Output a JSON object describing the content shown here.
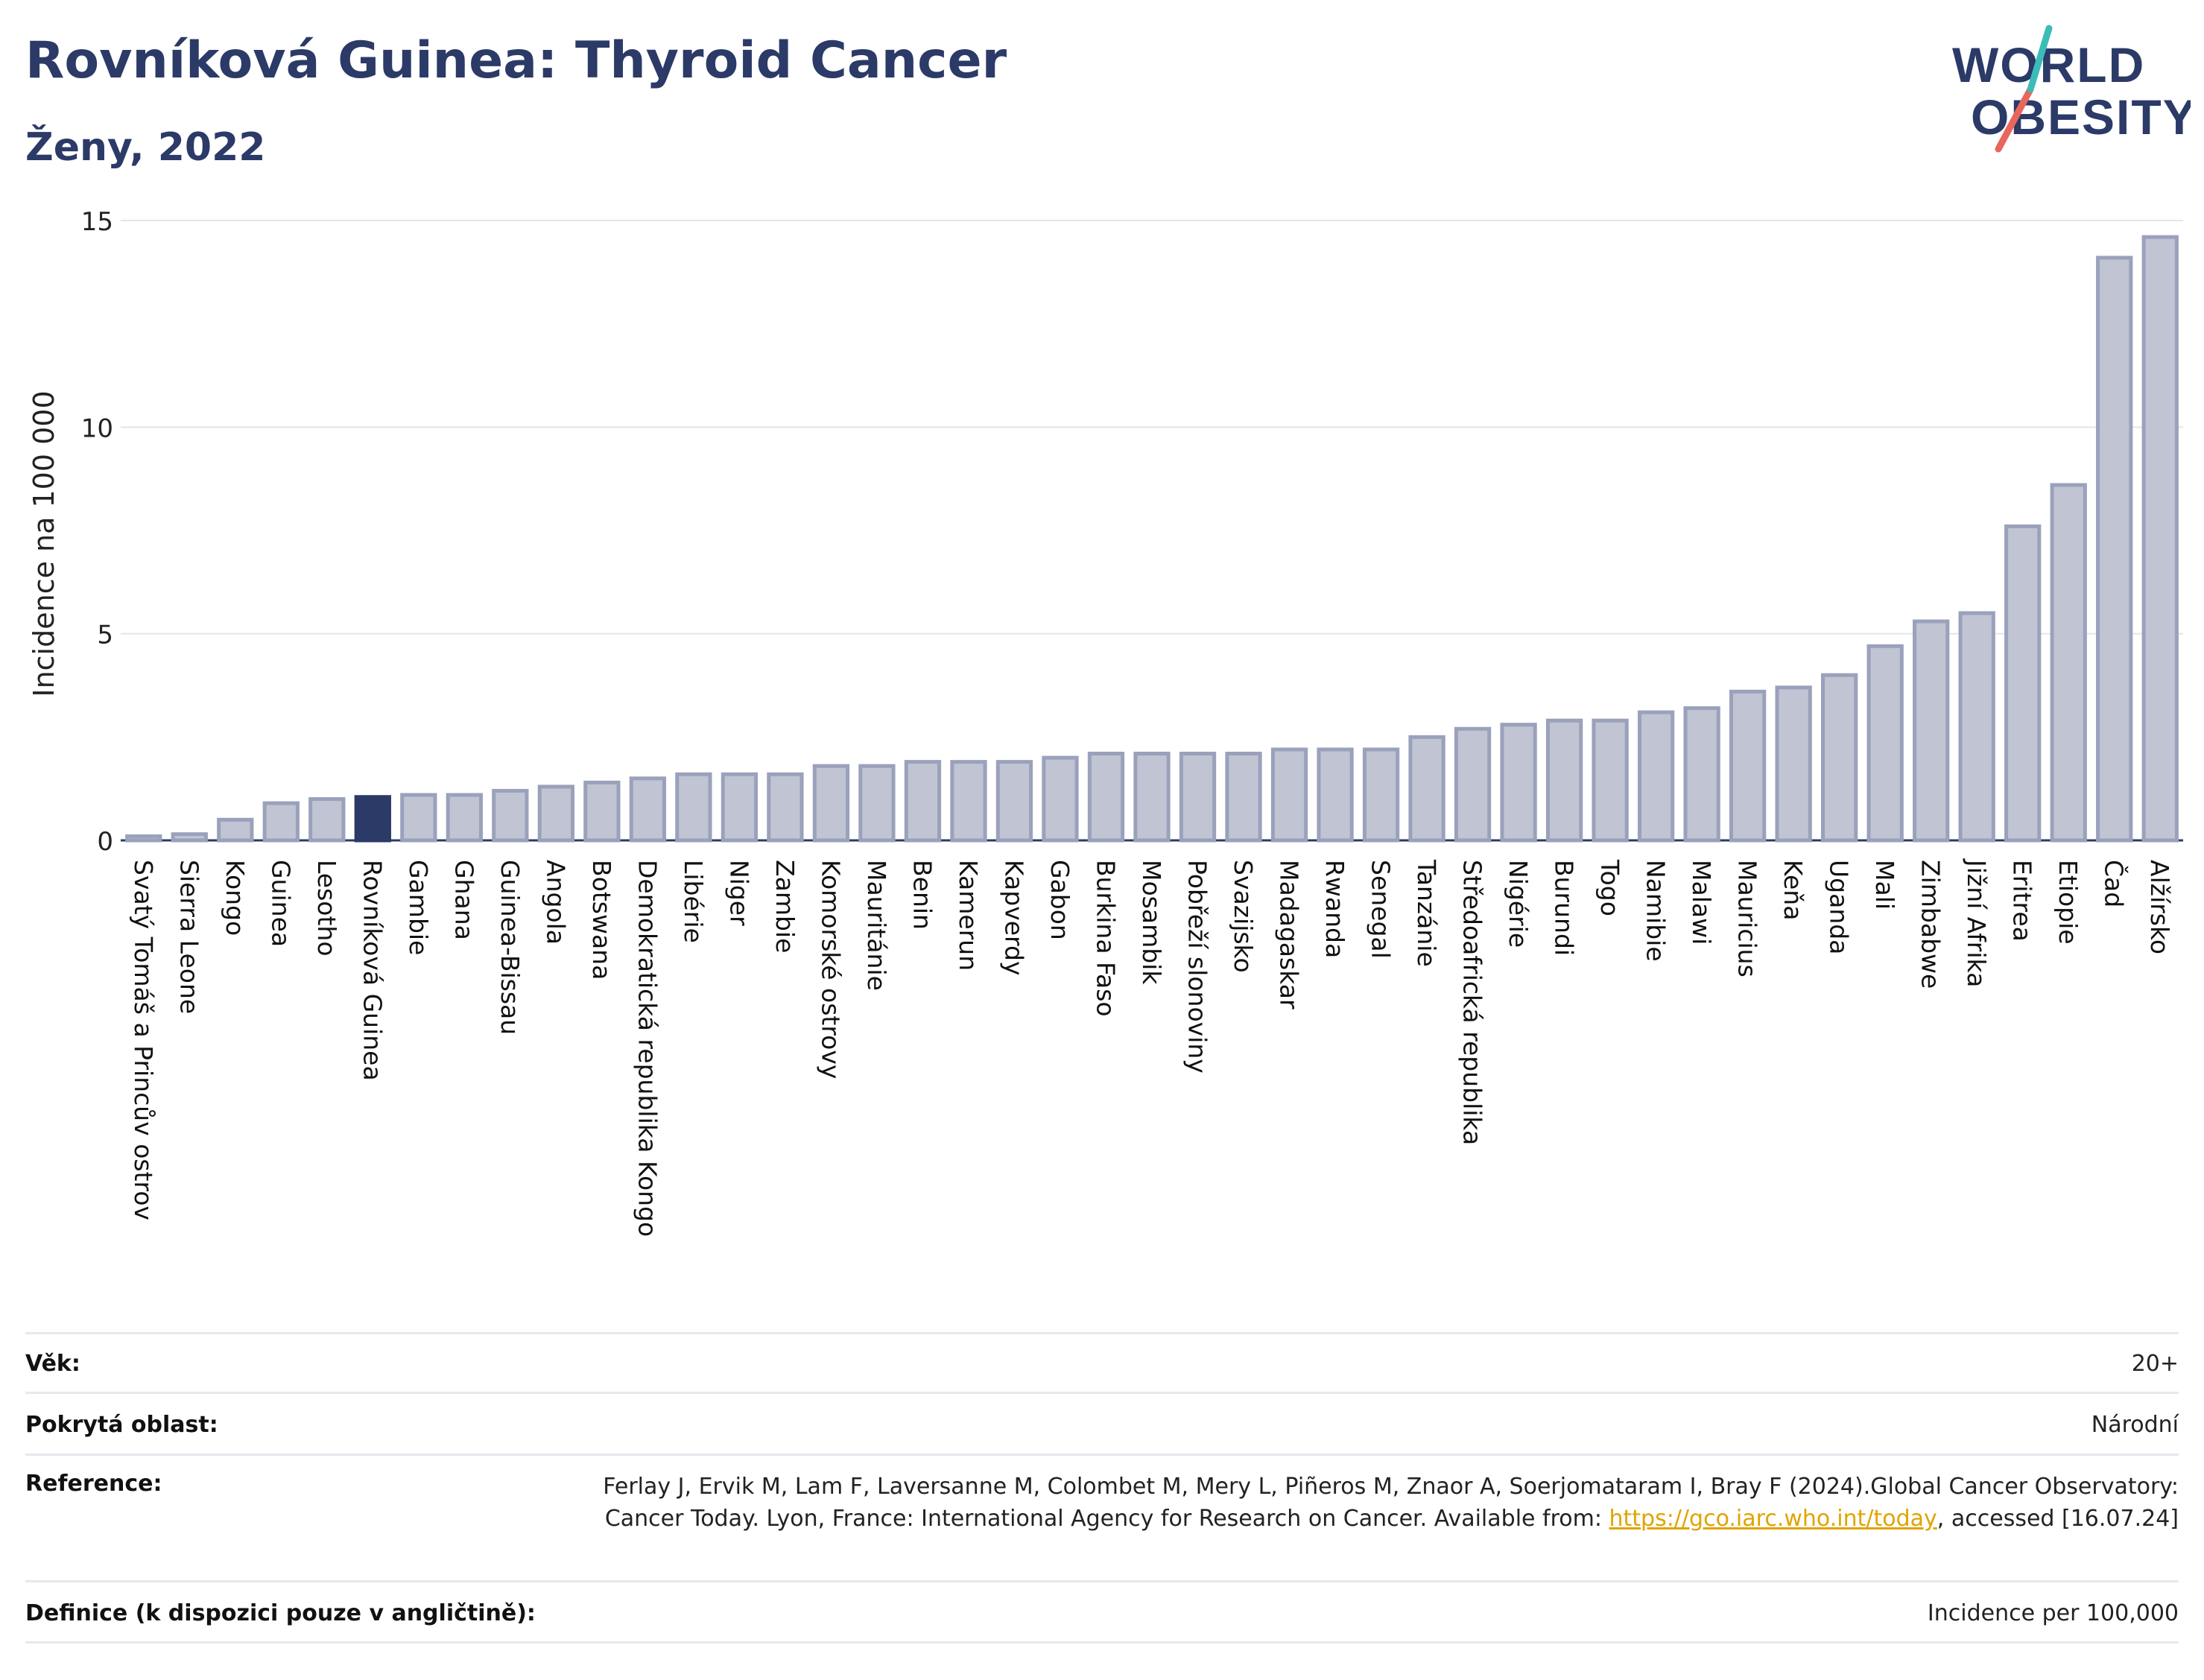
{
  "title": "Rovníková Guinea: Thyroid Cancer",
  "subtitle": "Ženy, 2022",
  "logo": {
    "line1": "WORLD",
    "line2": "OBESITY"
  },
  "chart_data": {
    "type": "bar",
    "ylabel": "Incidence na 100 000",
    "ylim": [
      0,
      15
    ],
    "yticks": [
      0,
      5,
      10,
      15
    ],
    "grid": true,
    "highlight": "Rovníková Guinea",
    "colors": {
      "bar": "#c0c4d3",
      "bar_border": "#9aa1bb",
      "highlight": "#2b3a67"
    },
    "categories": [
      "Svatý Tomáš a Princův ostrov",
      "Sierra Leone",
      "Kongo",
      "Guinea",
      "Lesotho",
      "Rovníková Guinea",
      "Gambie",
      "Ghana",
      "Guinea-Bissau",
      "Angola",
      "Botswana",
      "Demokratická republika Kongo",
      "Libérie",
      "Niger",
      "Zambie",
      "Komorské ostrovy",
      "Mauritánie",
      "Benin",
      "Kamerun",
      "Kapverdy",
      "Gabon",
      "Burkina Faso",
      "Mosambik",
      "Pobřeží slonoviny",
      "Svazijsko",
      "Madagaskar",
      "Rwanda",
      "Senegal",
      "Tanzánie",
      "Středoafrická republika",
      "Nigérie",
      "Burundi",
      "Togo",
      "Namibie",
      "Malawi",
      "Mauricius",
      "Keňa",
      "Uganda",
      "Mali",
      "Zimbabwe",
      "Jižní Afrika",
      "Eritrea",
      "Etiopie",
      "Čad",
      "Alžírsko"
    ],
    "values": [
      0.1,
      0.15,
      0.5,
      0.9,
      1.0,
      1.05,
      1.1,
      1.1,
      1.2,
      1.3,
      1.4,
      1.5,
      1.6,
      1.6,
      1.6,
      1.8,
      1.8,
      1.9,
      1.9,
      1.9,
      2.0,
      2.1,
      2.1,
      2.1,
      2.1,
      2.2,
      2.2,
      2.2,
      2.5,
      2.7,
      2.8,
      2.9,
      2.9,
      3.1,
      3.2,
      3.6,
      3.7,
      4.0,
      4.7,
      5.3,
      5.5,
      7.6,
      8.6,
      14.1,
      14.6
    ]
  },
  "info": [
    {
      "label": "Věk:",
      "value": "20+"
    },
    {
      "label": "Pokrytá oblast:",
      "value": "Národní"
    },
    {
      "label": "Reference:",
      "value": "Ferlay J, Ervik M, Lam F, Laversanne M, Colombet M, Mery L, Piñeros M, Znaor A, Soerjomataram I, Bray F (2024).Global Cancer Observatory: Cancer Today. Lyon, France: International Agency for Research on Cancer. Available from:",
      "link": "https://gco.iarc.who.int/today",
      "after_link": ", accessed [16.07.24]"
    },
    {
      "label": "Definice (k dispozici pouze v angličtině):",
      "value": "Incidence per 100,000"
    }
  ]
}
